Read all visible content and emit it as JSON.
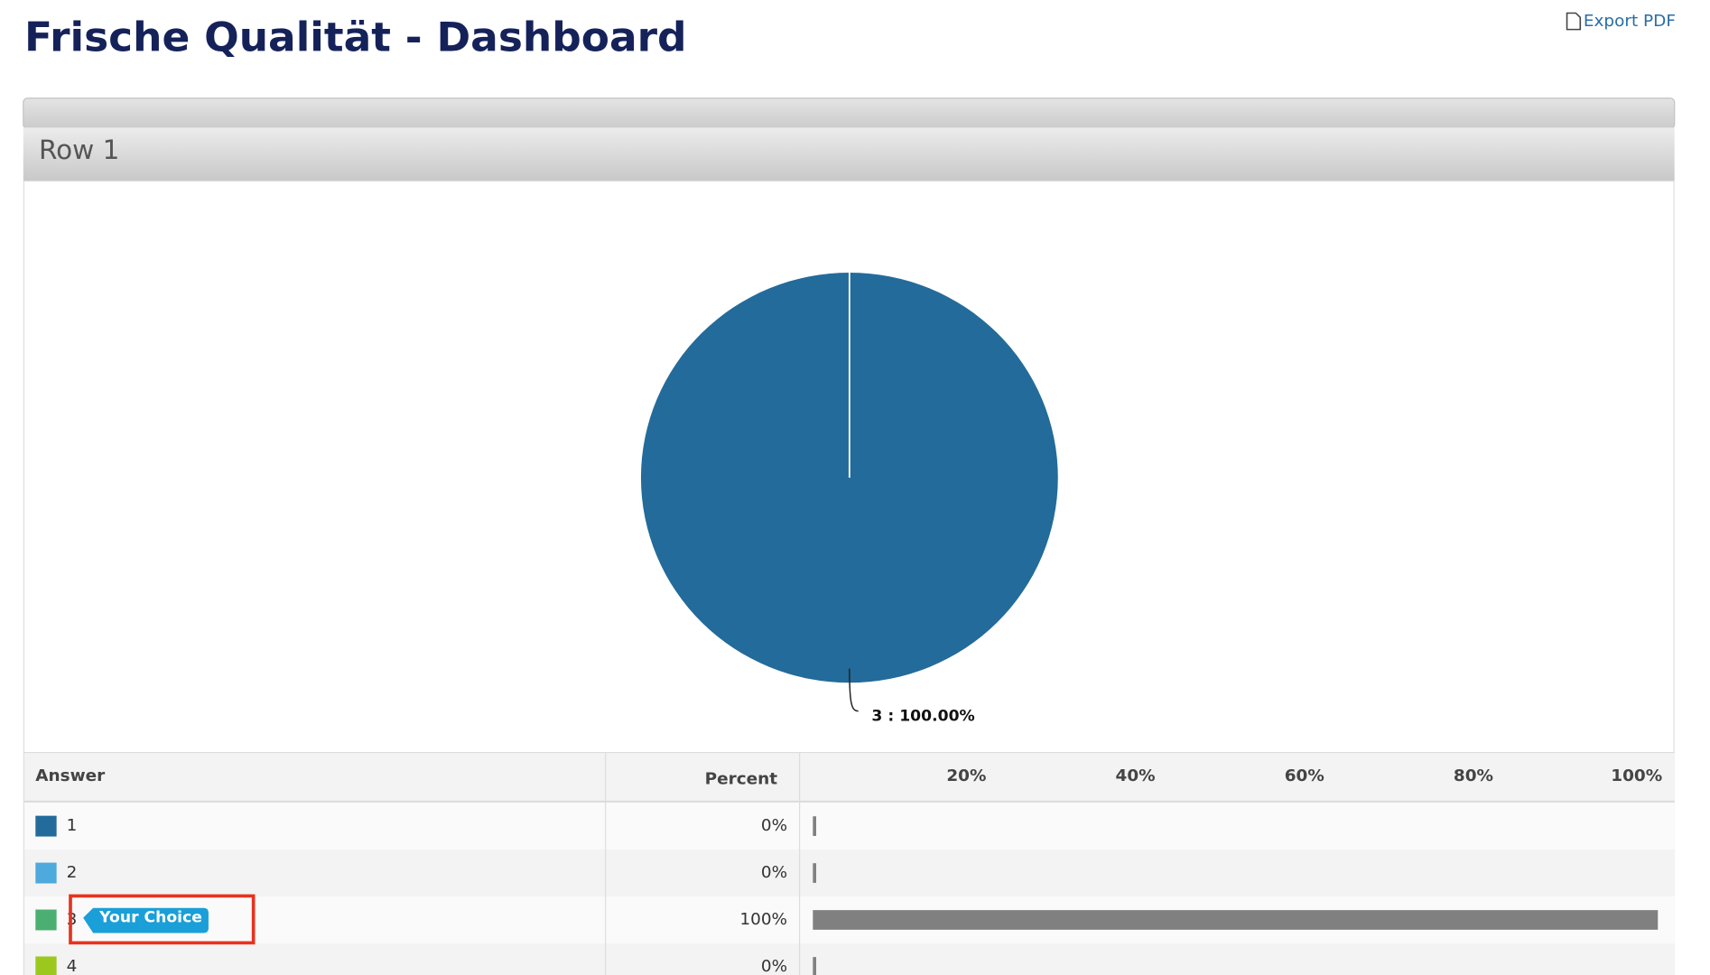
{
  "header": {
    "title": "Frische Qualität - Dashboard",
    "export": "Export PDF"
  },
  "panel": {
    "title": "Row 1"
  },
  "table": {
    "columns": [
      "Answer",
      "Percent"
    ],
    "badge": "Your Choice"
  },
  "chart_data": [
    {
      "type": "pie",
      "categories": [
        "3"
      ],
      "values": [
        100
      ],
      "value_labels": [
        "3 : 100.00%"
      ],
      "colors": [
        "#236b9a"
      ]
    },
    {
      "type": "bar",
      "categories": [
        "1",
        "2",
        "3",
        "4"
      ],
      "values": [
        0,
        0,
        100,
        0
      ],
      "value_labels": [
        "0%",
        "0%",
        "100%",
        "0%"
      ],
      "colors": [
        "#236b9a",
        "#4ea9dc",
        "#4caf72",
        "#9cc81e"
      ],
      "bar_color": "#808080",
      "xlim": [
        0,
        100
      ],
      "xticks": [
        {
          "value": 20,
          "label": "20%"
        },
        {
          "value": 40,
          "label": "40%"
        },
        {
          "value": 60,
          "label": "60%"
        },
        {
          "value": 80,
          "label": "80%"
        },
        {
          "value": 100,
          "label": "100%"
        }
      ]
    }
  ]
}
